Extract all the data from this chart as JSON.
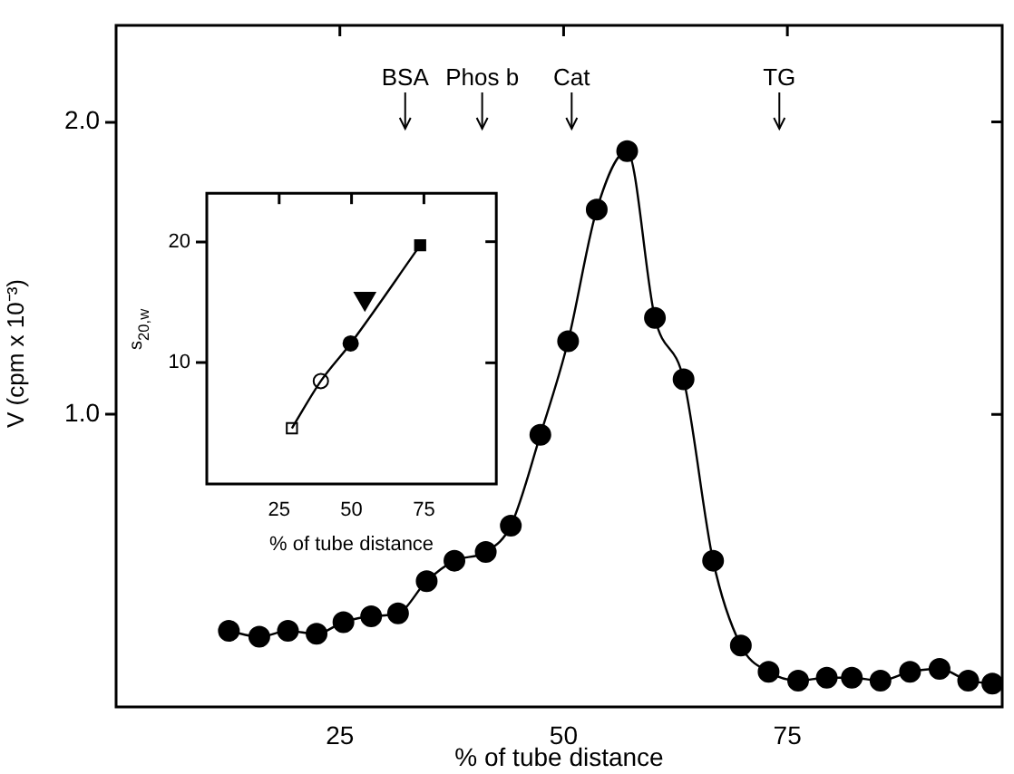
{
  "chart_data": [
    {
      "type": "line",
      "xlabel": "% of tube distance",
      "ylabel": "V (cpm x 10⁻³)",
      "xlim": [
        0,
        99
      ],
      "ylim": [
        0,
        2.33
      ],
      "xticks": [
        25,
        50,
        75
      ],
      "yticks": [
        {
          "value": 1,
          "label": "1.0"
        },
        {
          "value": 2,
          "label": "2.0"
        }
      ],
      "grid": false,
      "legend": false,
      "marker": "circle",
      "line_style": "solid",
      "series": [
        {
          "color": "#000000",
          "x": [
            12.6,
            16,
            19.2,
            22.4,
            25.4,
            28.5,
            31.5,
            34.7,
            37.8,
            41.3,
            44.1,
            47.4,
            50.5,
            53.7,
            57.1,
            60.2,
            63.4,
            66.7,
            69.8,
            72.9,
            76.2,
            79.4,
            82.2,
            85.4,
            88.7,
            92,
            95.2,
            97.9
          ],
          "values": [
            0.26,
            0.24,
            0.26,
            0.25,
            0.29,
            0.31,
            0.32,
            0.43,
            0.5,
            0.53,
            0.62,
            0.93,
            1.25,
            1.7,
            1.9,
            1.33,
            1.12,
            0.5,
            0.21,
            0.12,
            0.09,
            0.1,
            0.1,
            0.09,
            0.12,
            0.13,
            0.09,
            0.08
          ]
        }
      ],
      "ref_lines": [
        {
          "axis": "x",
          "value": 32.3,
          "label": "BSA"
        },
        {
          "axis": "x",
          "value": 40.9,
          "label": "Phos b"
        },
        {
          "axis": "x",
          "value": 50.9,
          "label": "Cat"
        },
        {
          "axis": "x",
          "value": 74.1,
          "label": "TG"
        }
      ]
    },
    {
      "type": "line",
      "xlabel": "% of tube distance",
      "ylabel": "s$_{20,w}$",
      "xlim": [
        0,
        100
      ],
      "ylim": [
        0,
        24
      ],
      "xticks": [
        25,
        50,
        75
      ],
      "yticks": [
        10,
        20
      ],
      "grid": false,
      "legend": false,
      "line_style": "solid",
      "series": [
        {
          "marker": "none",
          "color": "#000000",
          "x": [
            29.4,
            39.4,
            49.7,
            73.7
          ],
          "values": [
            4.6,
            8.5,
            11.6,
            19.7
          ]
        },
        {
          "type": "scatter",
          "marker": "square",
          "colors": [
            "#ffffff",
            "#000000"
          ],
          "x": [
            29.4,
            73.7
          ],
          "values": [
            4.6,
            19.7
          ]
        },
        {
          "type": "scatter",
          "marker": "circle",
          "colors": [
            "#ffffff",
            "#000000"
          ],
          "x": [
            39.4,
            49.7
          ],
          "values": [
            8.5,
            11.6
          ]
        },
        {
          "type": "scatter",
          "marker": "triangle",
          "color": "#000000",
          "x": [
            54.6
          ],
          "values": [
            15.3
          ]
        }
      ]
    }
  ]
}
